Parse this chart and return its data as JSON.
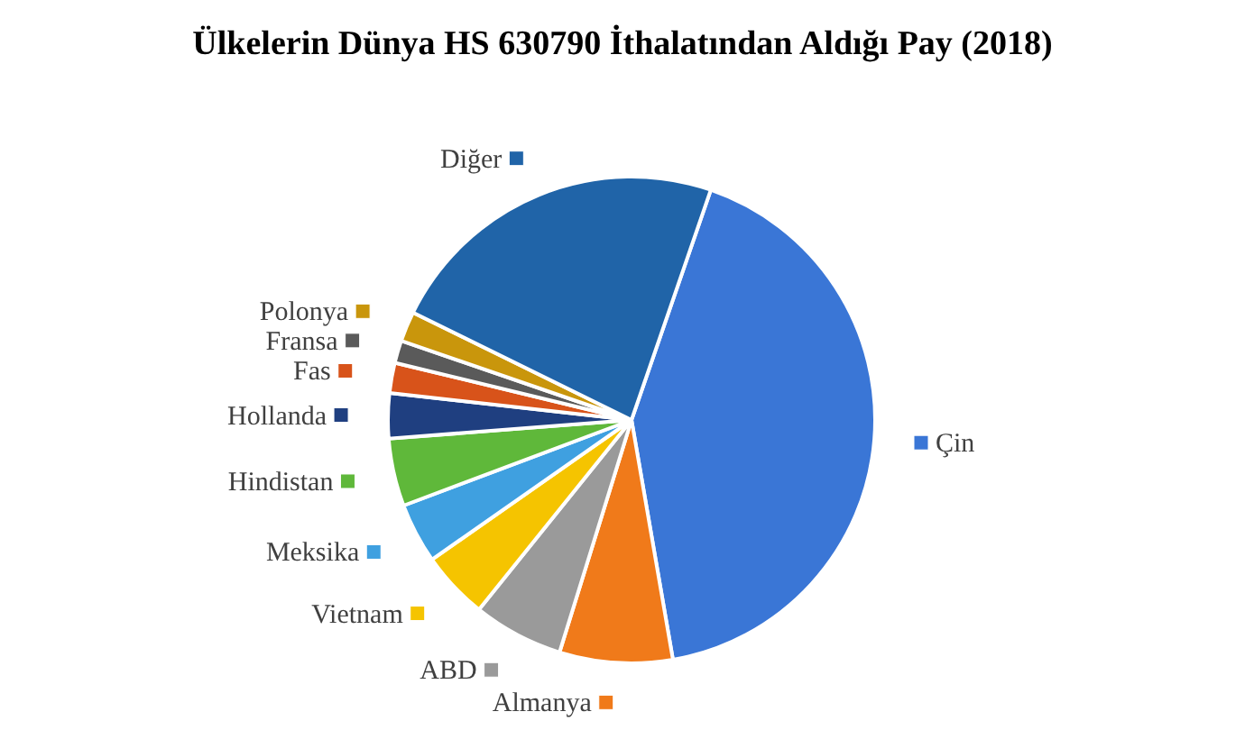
{
  "chart_data": {
    "type": "pie",
    "title": "Ülkelerin Dünya HS 630790 İthalatından Aldığı Pay  (2018)",
    "categories": [
      "Çin",
      "Almanya",
      "ABD",
      "Vietnam",
      "Meksika",
      "Hindistan",
      "Hollanda",
      "Fas",
      "Fransa",
      "Polonya",
      "Diğer"
    ],
    "values": [
      42,
      7.5,
      6,
      4.5,
      4,
      4.5,
      3,
      2,
      1.5,
      2,
      23
    ],
    "colors": [
      "#3a76d6",
      "#f07a1a",
      "#9a9a9a",
      "#f5c400",
      "#3fa0e0",
      "#5fb83a",
      "#1f3f80",
      "#d8531a",
      "#5a5a5a",
      "#c9960c",
      "#2064a8"
    ],
    "legend": "left"
  }
}
